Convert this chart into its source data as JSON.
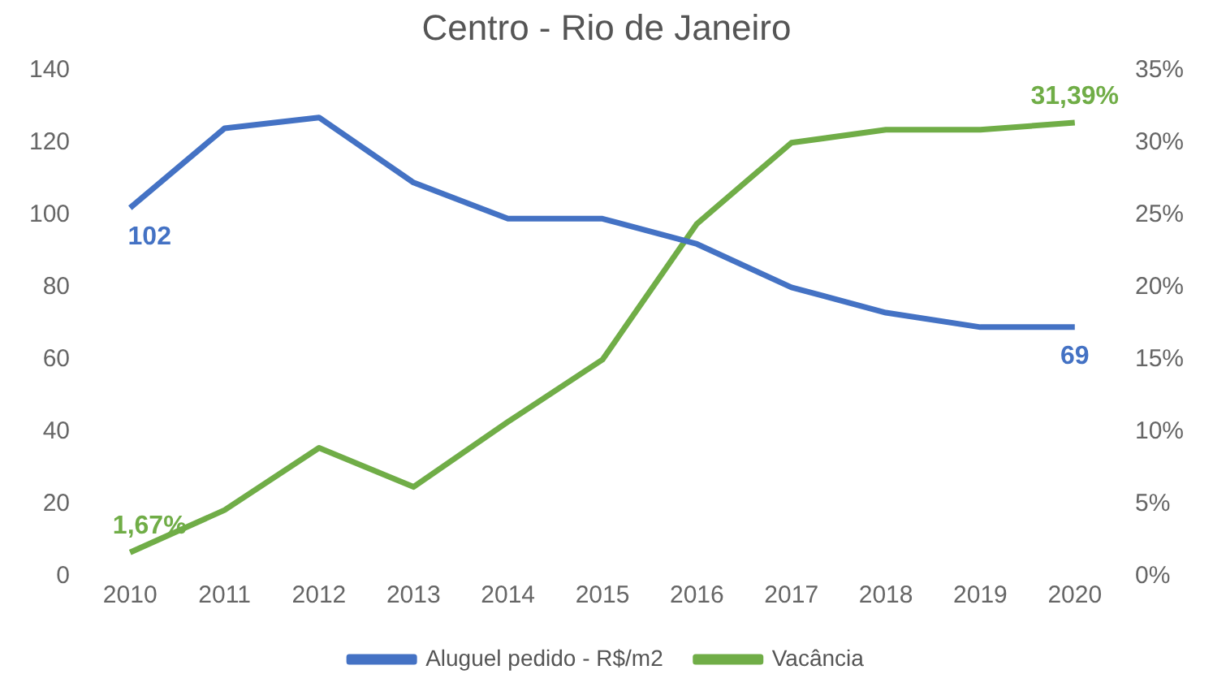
{
  "chart_data": {
    "type": "line",
    "title": "Centro - Rio de Janeiro",
    "categories": [
      "2010",
      "2011",
      "2012",
      "2013",
      "2014",
      "2015",
      "2016",
      "2017",
      "2018",
      "2019",
      "2020"
    ],
    "series": [
      {
        "name": "Aluguel pedido - R$/m2",
        "color": "#4472c4",
        "values": [
          102,
          124,
          127,
          109,
          99,
          99,
          92,
          80,
          73,
          69,
          69
        ],
        "value_labels": [
          "102",
          null,
          null,
          null,
          null,
          null,
          null,
          null,
          null,
          null,
          "69"
        ]
      },
      {
        "name": "Vacância",
        "color": "#70ad47",
        "axis": "y2",
        "values": [
          1.67,
          4.6,
          8.9,
          6.2,
          10.7,
          15.0,
          24.4,
          30.0,
          30.9,
          30.9,
          31.39
        ],
        "value_labels": [
          "1,67%",
          null,
          null,
          null,
          null,
          null,
          null,
          null,
          null,
          null,
          "31,39%"
        ]
      }
    ],
    "ylim": [
      0,
      140
    ],
    "yticks": [
      0,
      20,
      40,
      60,
      80,
      100,
      120,
      140
    ],
    "y2lim": [
      0,
      35
    ],
    "y2ticks": [
      {
        "value": 0,
        "label": "0%"
      },
      {
        "value": 5,
        "label": "5%"
      },
      {
        "value": 10,
        "label": "10%"
      },
      {
        "value": 15,
        "label": "15%"
      },
      {
        "value": 20,
        "label": "20%"
      },
      {
        "value": 25,
        "label": "25%"
      },
      {
        "value": 30,
        "label": "30%"
      },
      {
        "value": 35,
        "label": "35%"
      }
    ],
    "grid": false,
    "legend": "bottom",
    "marker": "none",
    "line_style": "solid"
  }
}
